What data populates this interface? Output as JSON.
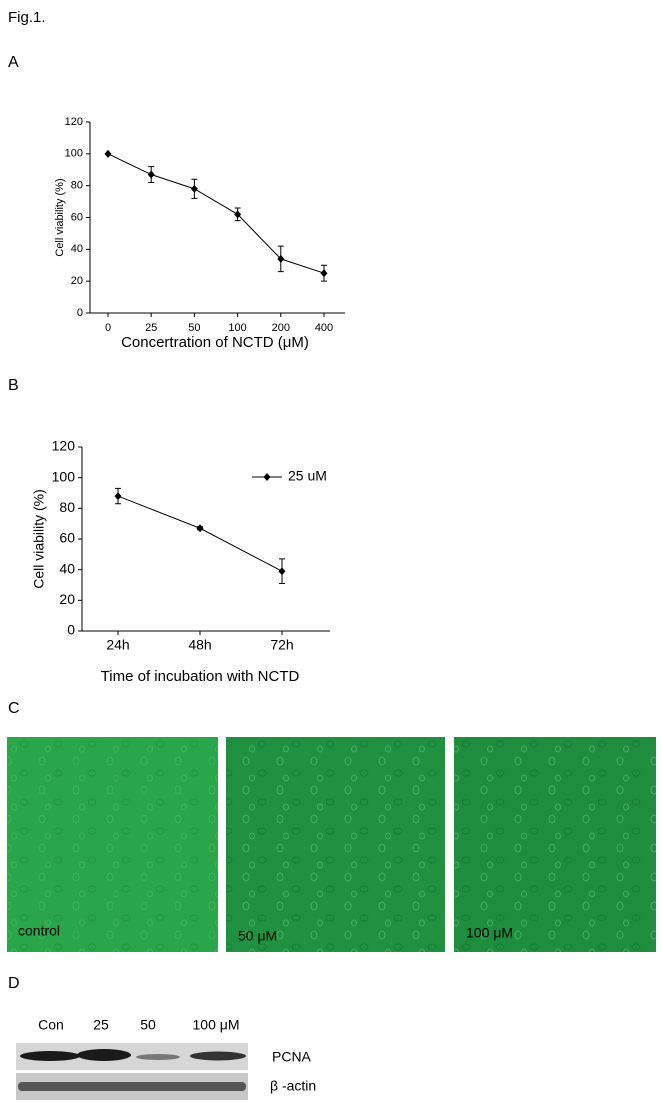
{
  "figure_label": "Fig.1.",
  "panel_labels": [
    "A",
    "B",
    "C",
    "D"
  ],
  "chart_data": [
    {
      "type": "line",
      "ylabel": "Cell viability (%)",
      "xlabel": "Concertration of NCTD (μM)",
      "categories": [
        "0",
        "25",
        "50",
        "100",
        "200",
        "400"
      ],
      "series": [
        {
          "color": "#000000",
          "values": [
            100,
            87,
            78,
            62,
            34,
            25
          ],
          "errors": [
            0,
            5,
            6,
            4,
            8,
            5
          ]
        }
      ],
      "ylim": [
        0,
        120
      ],
      "yticks": [
        0,
        20,
        40,
        60,
        80,
        100,
        120
      ]
    },
    {
      "type": "line",
      "ylabel": "Cell viability (%)",
      "xlabel": "Time of incubation with NCTD",
      "categories": [
        "24h",
        "48h",
        "72h"
      ],
      "series": [
        {
          "name": "25 uM",
          "color": "#000000",
          "values": [
            88,
            67,
            39
          ],
          "errors": [
            5,
            1,
            8
          ]
        }
      ],
      "ylim": [
        0,
        120
      ],
      "yticks": [
        0,
        20,
        40,
        60,
        80,
        100,
        120
      ],
      "legend": "upper right"
    }
  ],
  "micrographs": [
    {
      "label": "control"
    },
    {
      "label": "50 μM"
    },
    {
      "label": "100 μM"
    }
  ],
  "blot": {
    "lanes": [
      "Con",
      "25",
      "50",
      "100 μM"
    ],
    "rows": [
      "PCNA",
      "β -actin"
    ]
  }
}
